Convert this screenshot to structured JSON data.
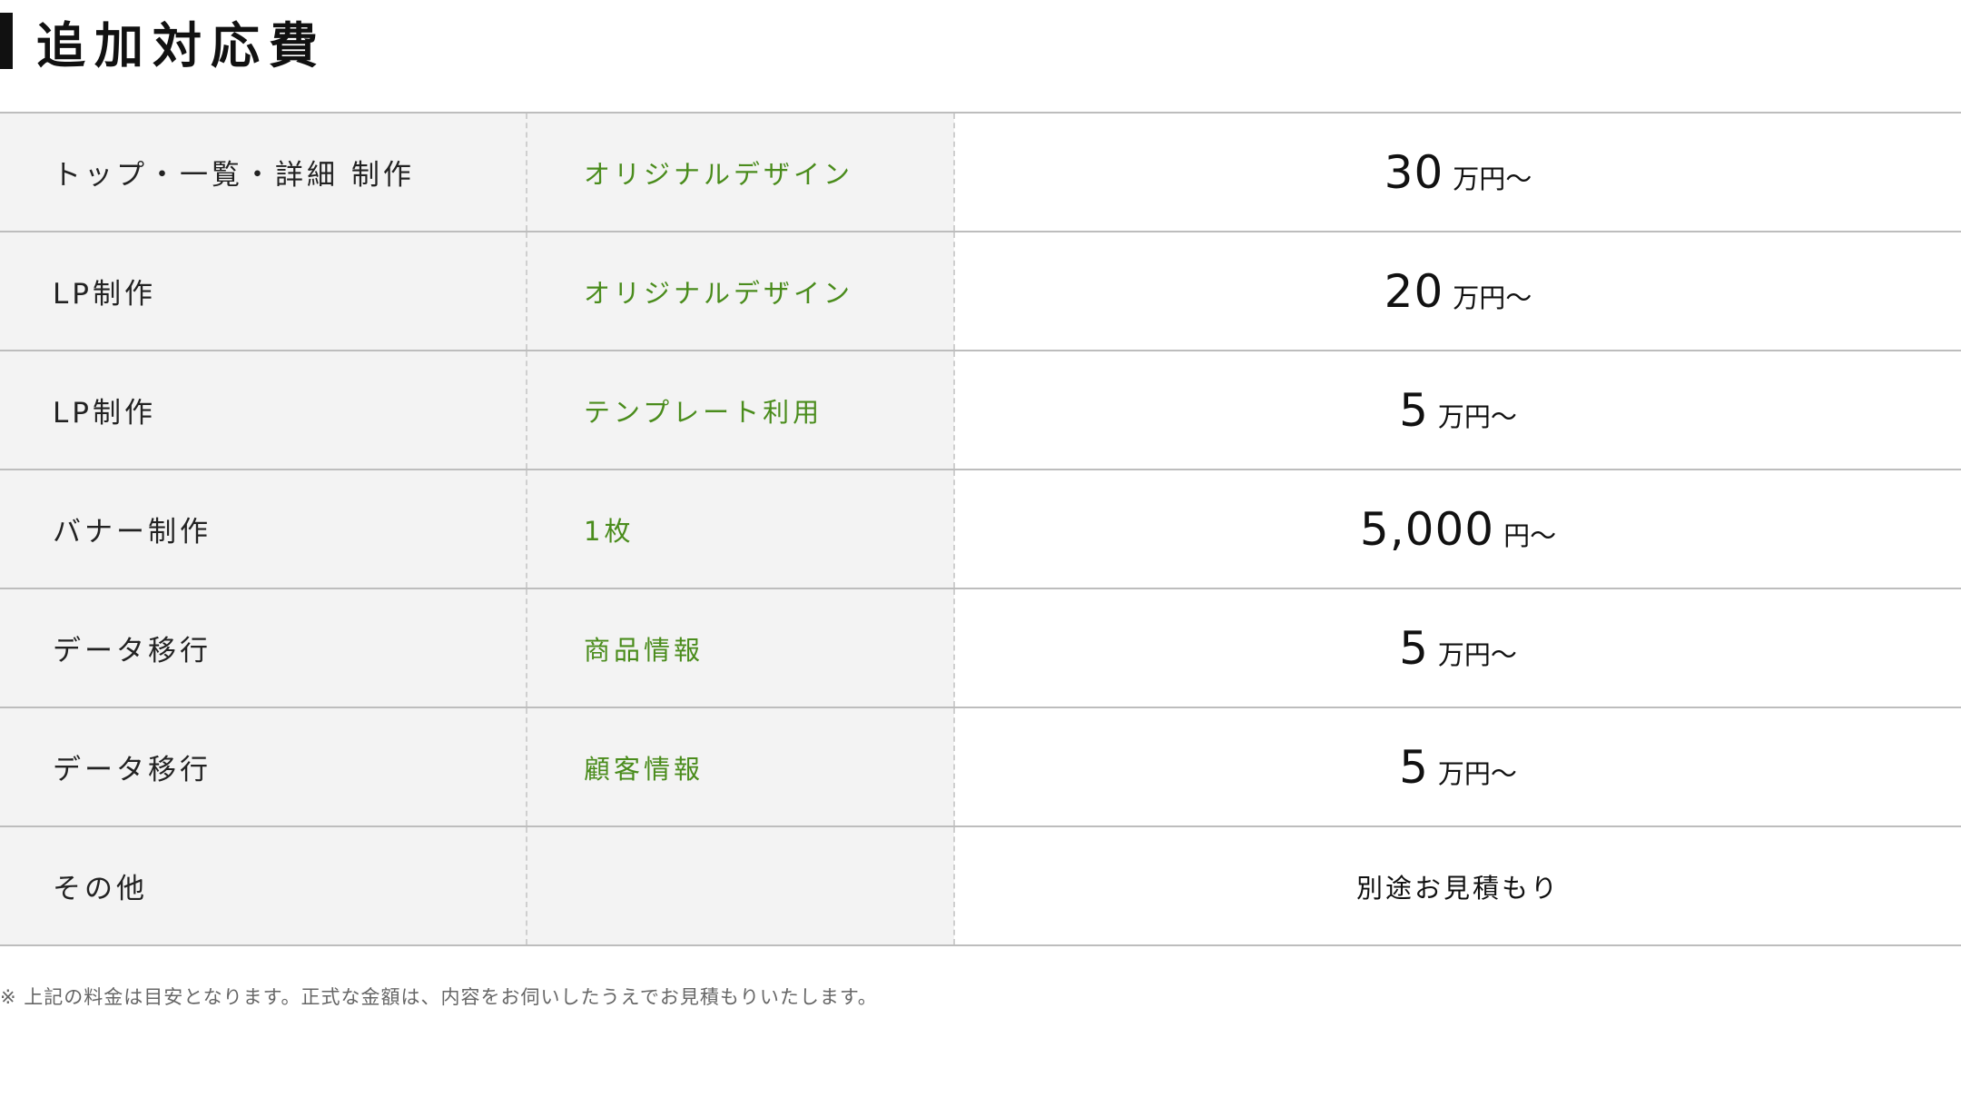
{
  "title": "追加対応費",
  "rows": [
    {
      "item": "トップ・一覧・詳細 制作",
      "detail": "オリジナルデザイン",
      "price": "30",
      "unit": "万円〜"
    },
    {
      "item": "LP制作",
      "detail": "オリジナルデザイン",
      "price": "20",
      "unit": "万円〜"
    },
    {
      "item": "LP制作",
      "detail": "テンプレート利用",
      "price": "5",
      "unit": "万円〜"
    },
    {
      "item": "バナー制作",
      "detail": "1枚",
      "price": "5,000",
      "unit": "円〜"
    },
    {
      "item": "データ移行",
      "detail": "商品情報",
      "price": "5",
      "unit": "万円〜"
    },
    {
      "item": "データ移行",
      "detail": "顧客情報",
      "price": "5",
      "unit": "万円〜"
    },
    {
      "item": "その他",
      "detail": "",
      "other": "別途お見積もり"
    }
  ],
  "note": "※  上記の料金は目安となります。正式な金額は、内容をお伺いしたうえでお見積もりいたします。",
  "colors": {
    "accent_green": "#4a8c1c",
    "title_bar": "#111111",
    "label_bg": "#f3f3f3"
  }
}
